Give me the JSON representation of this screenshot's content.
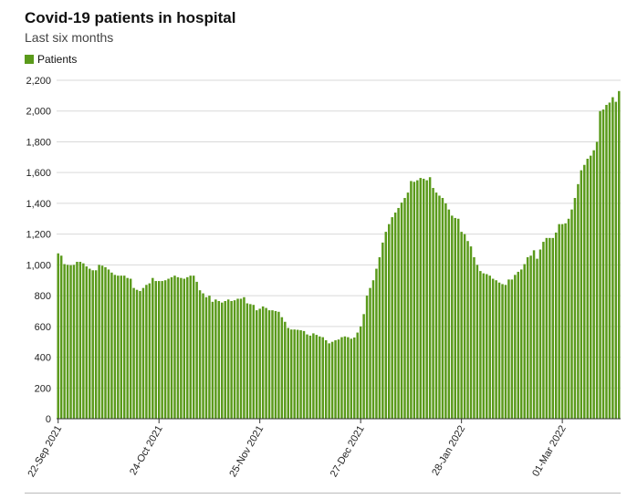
{
  "title": "Covid-19 patients in hospital",
  "subtitle": "Last six months",
  "legend": {
    "label": "Patients",
    "color": "#5a9a1b"
  },
  "colors": {
    "bar": "#5a9a1b",
    "grid": "#d9d9d9",
    "axis": "#333333"
  },
  "chart_data": {
    "type": "bar",
    "title": "Covid-19 patients in hospital",
    "subtitle": "Last six months",
    "xlabel": "",
    "ylabel": "",
    "ylim": [
      0,
      2200
    ],
    "y_ticks": [
      0,
      200,
      400,
      600,
      800,
      1000,
      1200,
      1400,
      1600,
      1800,
      2000,
      2200
    ],
    "y_tick_labels": [
      "0",
      "200",
      "400",
      "600",
      "800",
      "1,000",
      "1,200",
      "1,400",
      "1,600",
      "1,800",
      "2,000",
      "2,200"
    ],
    "x_tick_labels": [
      {
        "label": "22-Sep 2021",
        "index": 0
      },
      {
        "label": "24-Oct 2021",
        "index": 32
      },
      {
        "label": "25-Nov 2021",
        "index": 64
      },
      {
        "label": "27-Dec 2021",
        "index": 96
      },
      {
        "label": "28-Jan 2022",
        "index": 128
      },
      {
        "label": "01-Mar 2022",
        "index": 160
      }
    ],
    "grid": true,
    "legend_position": "top-left",
    "series": [
      {
        "name": "Patients",
        "values": [
          1075,
          1060,
          1005,
          1000,
          998,
          1000,
          1020,
          1020,
          1010,
          990,
          975,
          965,
          965,
          1000,
          995,
          985,
          970,
          950,
          935,
          930,
          930,
          930,
          915,
          910,
          850,
          838,
          830,
          850,
          870,
          880,
          915,
          895,
          895,
          895,
          900,
          910,
          920,
          930,
          920,
          915,
          910,
          920,
          930,
          930,
          890,
          835,
          815,
          790,
          800,
          760,
          775,
          765,
          755,
          765,
          775,
          765,
          770,
          780,
          780,
          790,
          750,
          745,
          740,
          705,
          715,
          730,
          720,
          705,
          705,
          700,
          695,
          660,
          630,
          590,
          580,
          580,
          578,
          575,
          570,
          548,
          540,
          555,
          545,
          535,
          530,
          510,
          490,
          500,
          510,
          515,
          530,
          535,
          530,
          520,
          528,
          560,
          600,
          680,
          800,
          850,
          900,
          975,
          1050,
          1145,
          1215,
          1265,
          1310,
          1340,
          1370,
          1405,
          1435,
          1470,
          1545,
          1540,
          1550,
          1565,
          1560,
          1550,
          1570,
          1500,
          1470,
          1450,
          1435,
          1400,
          1360,
          1320,
          1305,
          1300,
          1215,
          1200,
          1155,
          1120,
          1050,
          1000,
          960,
          945,
          940,
          930,
          910,
          900,
          885,
          875,
          870,
          905,
          905,
          935,
          955,
          970,
          1005,
          1050,
          1060,
          1095,
          1040,
          1100,
          1150,
          1175,
          1175,
          1175,
          1210,
          1265,
          1265,
          1270,
          1300,
          1360,
          1435,
          1525,
          1615,
          1650,
          1690,
          1710,
          1745,
          1800,
          2000,
          2010,
          2040,
          2055,
          2090,
          2060,
          2130
        ]
      }
    ]
  }
}
